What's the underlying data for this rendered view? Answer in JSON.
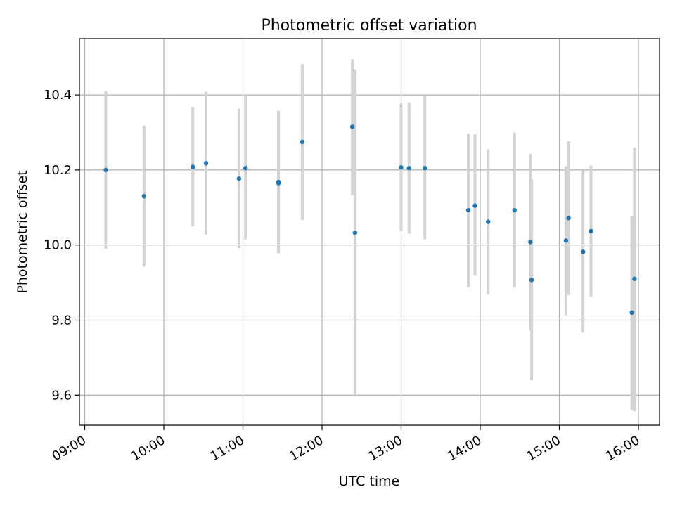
{
  "chart_data": {
    "type": "scatter",
    "title": "Photometric offset variation",
    "xlabel": "UTC time",
    "ylabel": "Photometric offset",
    "xlim": [
      "08:56",
      "16:16"
    ],
    "ylim": [
      9.52,
      10.55
    ],
    "xticks": [
      "09:00",
      "10:00",
      "11:00",
      "12:00",
      "13:00",
      "14:00",
      "15:00",
      "16:00"
    ],
    "yticks": [
      9.6,
      9.8,
      10.0,
      10.2,
      10.4
    ],
    "ytick_labels": [
      "9.6",
      "9.8",
      "10.0",
      "10.2",
      "10.4"
    ],
    "grid": true,
    "legend": "none",
    "colors": {
      "point": "#1f77b4",
      "errorbar": "#d3d3d3",
      "grid": "#b0b0b0",
      "axis": "#000000"
    },
    "points": [
      {
        "time": "09:16",
        "y": 10.2,
        "ylow": 9.99,
        "yhigh": 10.41
      },
      {
        "time": "09:45",
        "y": 10.13,
        "ylow": 9.943,
        "yhigh": 10.318
      },
      {
        "time": "10:22",
        "y": 10.208,
        "ylow": 10.05,
        "yhigh": 10.368
      },
      {
        "time": "10:32",
        "y": 10.218,
        "ylow": 10.028,
        "yhigh": 10.408
      },
      {
        "time": "10:57",
        "y": 10.177,
        "ylow": 9.992,
        "yhigh": 10.364
      },
      {
        "time": "11:02",
        "y": 10.205,
        "ylow": 10.015,
        "yhigh": 10.398
      },
      {
        "time": "11:27",
        "y": 10.168,
        "ylow": 9.978,
        "yhigh": 10.358
      },
      {
        "time": "11:27",
        "y": 10.165,
        "ylow": 9.978,
        "yhigh": 10.358
      },
      {
        "time": "11:45",
        "y": 10.275,
        "ylow": 10.067,
        "yhigh": 10.482
      },
      {
        "time": "12:23",
        "y": 10.315,
        "ylow": 10.133,
        "yhigh": 10.495
      },
      {
        "time": "12:25",
        "y": 10.033,
        "ylow": 9.6,
        "yhigh": 10.468
      },
      {
        "time": "13:00",
        "y": 10.207,
        "ylow": 10.037,
        "yhigh": 10.378
      },
      {
        "time": "13:06",
        "y": 10.205,
        "ylow": 10.03,
        "yhigh": 10.38
      },
      {
        "time": "13:18",
        "y": 10.205,
        "ylow": 10.015,
        "yhigh": 10.398
      },
      {
        "time": "13:51",
        "y": 10.093,
        "ylow": 9.887,
        "yhigh": 10.297
      },
      {
        "time": "13:56",
        "y": 10.105,
        "ylow": 9.918,
        "yhigh": 10.295
      },
      {
        "time": "14:06",
        "y": 10.062,
        "ylow": 9.868,
        "yhigh": 10.255
      },
      {
        "time": "14:26",
        "y": 10.093,
        "ylow": 9.887,
        "yhigh": 10.3
      },
      {
        "time": "14:38",
        "y": 10.008,
        "ylow": 9.773,
        "yhigh": 10.243
      },
      {
        "time": "14:39",
        "y": 9.907,
        "ylow": 9.64,
        "yhigh": 10.175
      },
      {
        "time": "15:05",
        "y": 10.012,
        "ylow": 9.813,
        "yhigh": 10.21
      },
      {
        "time": "15:07",
        "y": 10.072,
        "ylow": 9.867,
        "yhigh": 10.277
      },
      {
        "time": "15:18",
        "y": 9.982,
        "ylow": 9.767,
        "yhigh": 10.2
      },
      {
        "time": "15:24",
        "y": 10.037,
        "ylow": 9.862,
        "yhigh": 10.212
      },
      {
        "time": "15:55",
        "y": 9.82,
        "ylow": 9.56,
        "yhigh": 10.077
      },
      {
        "time": "15:57",
        "y": 9.91,
        "ylow": 9.557,
        "yhigh": 10.26
      }
    ]
  }
}
